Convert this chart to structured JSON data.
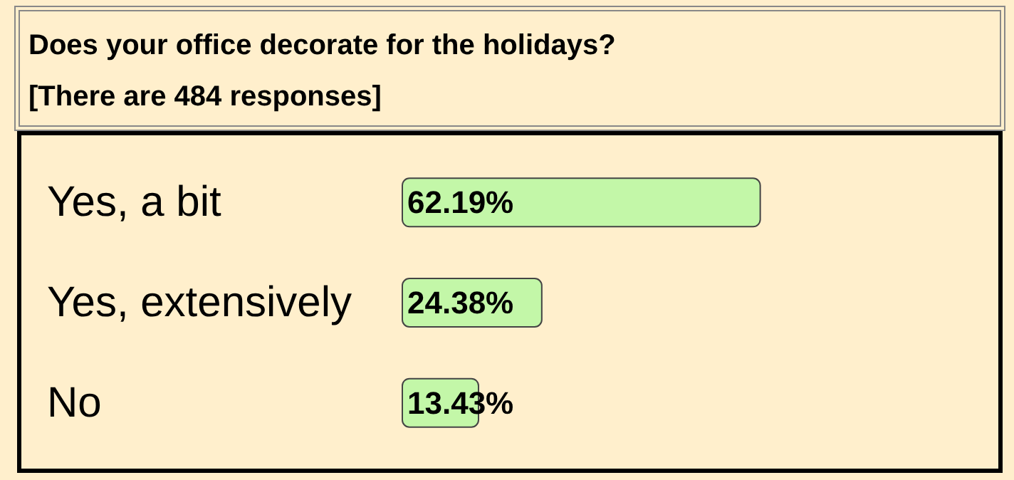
{
  "chart_data": {
    "type": "bar",
    "orientation": "horizontal",
    "title": "Does your office decorate for the holidays?",
    "subtitle": "[There are 484 responses]",
    "categories": [
      "Yes, a bit",
      "Yes, extensively",
      "No"
    ],
    "values": [
      62.19,
      24.38,
      13.43
    ],
    "value_labels": [
      "62.19%",
      "24.38%",
      "13.43%"
    ],
    "color": "#c3f7a8",
    "tick_labels": "y"
  }
}
